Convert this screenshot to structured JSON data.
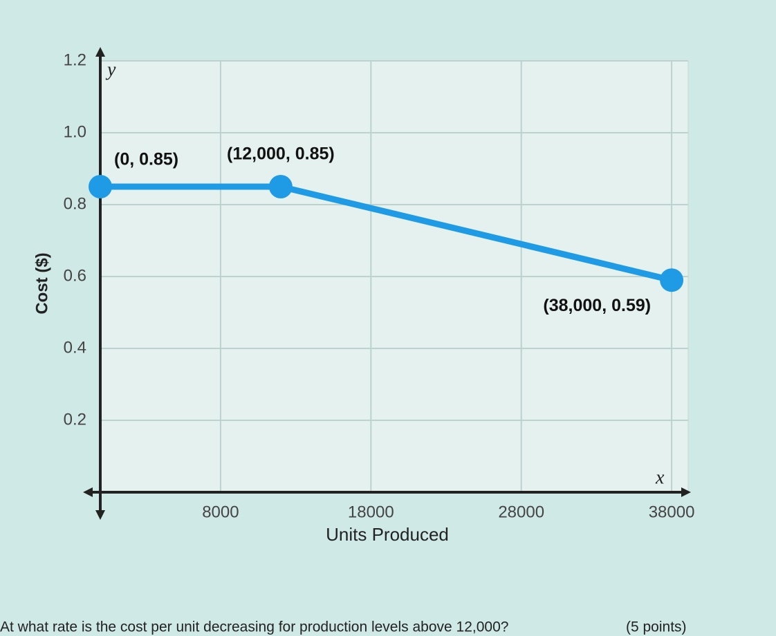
{
  "chart_data": {
    "type": "line",
    "x": [
      0,
      12000,
      38000
    ],
    "values": [
      0.85,
      0.85,
      0.59
    ],
    "value_labels": [
      "(0, 0.85)",
      "(12,000, 0.85)",
      "(38,000, 0.59)"
    ],
    "color": "#1f9be6",
    "xlabel": "Units Produced",
    "ylabel": "Cost ($)",
    "x_axis_letter": "x",
    "y_axis_letter": "y",
    "xlim": [
      0,
      39100
    ],
    "ylim": [
      0,
      1.25
    ],
    "xticks": [
      8000,
      18000,
      28000,
      38000
    ],
    "yticks": [
      0.2,
      0.4,
      0.6,
      0.8,
      {
        "value": 1,
        "label": "1.0"
      },
      1.2
    ],
    "grid": true
  },
  "question": {
    "text": "At what rate is the cost per unit decreasing for production levels above 12,000?",
    "points": "(5 points)"
  }
}
